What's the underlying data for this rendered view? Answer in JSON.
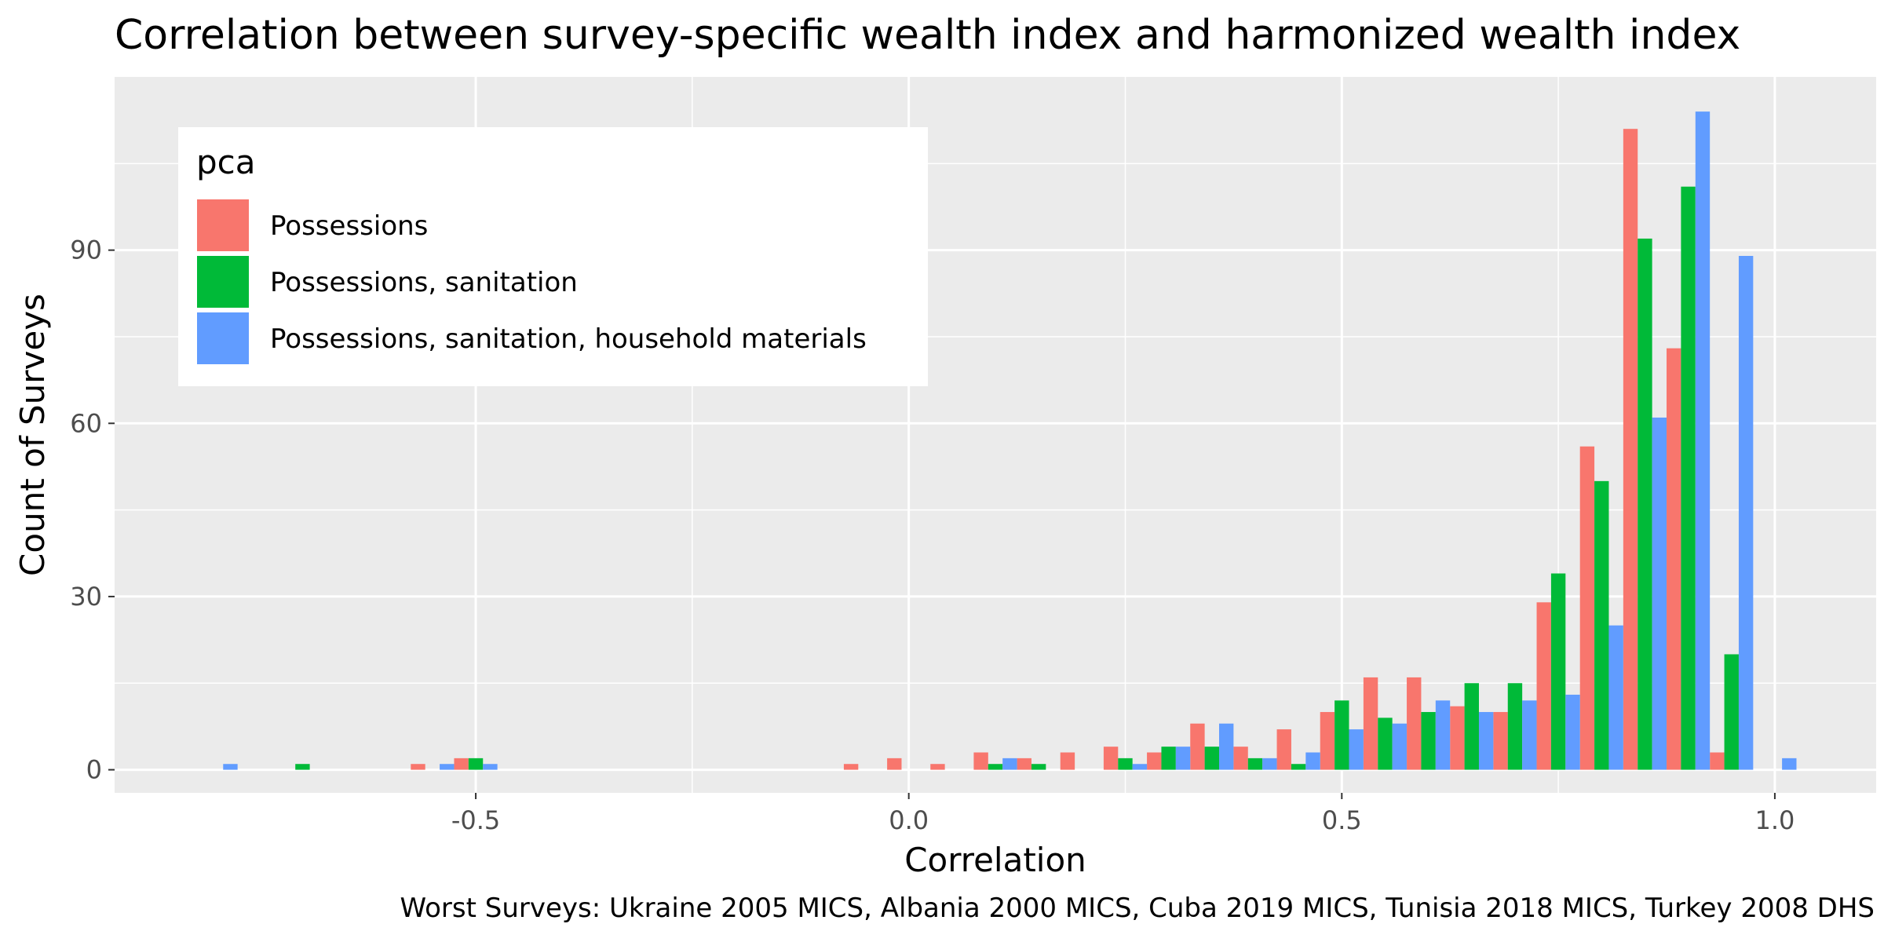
{
  "chart_data": {
    "type": "bar",
    "title": "Correlation between survey-specific wealth index and harmonized wealth index",
    "xlabel": "Correlation",
    "ylabel": "Count of Surveys",
    "caption": "Worst Surveys: Ukraine 2005 MICS, Albania 2000 MICS, Cuba 2019 MICS, Tunisia 2018 MICS, Turkey 2008 DHS",
    "xlim": [
      -0.917,
      1.117
    ],
    "ylim": [
      -4,
      120
    ],
    "x_ticks": [
      -0.5,
      0.0,
      0.5,
      1.0
    ],
    "x_tick_labels": [
      "-0.5",
      "0.0",
      "0.5",
      "1.0"
    ],
    "y_ticks": [
      0,
      30,
      60,
      90
    ],
    "y_tick_labels": [
      "0",
      "30",
      "60",
      "90"
    ],
    "bin_width": 0.05,
    "bins": [
      -0.8,
      -0.75,
      -0.7,
      -0.65,
      -0.6,
      -0.55,
      -0.5,
      -0.45,
      -0.4,
      -0.35,
      -0.3,
      -0.25,
      -0.2,
      -0.15,
      -0.1,
      -0.05,
      0.0,
      0.05,
      0.1,
      0.15,
      0.2,
      0.25,
      0.3,
      0.35,
      0.4,
      0.45,
      0.5,
      0.55,
      0.6,
      0.65,
      0.7,
      0.75,
      0.8,
      0.85,
      0.9,
      0.95,
      1.0
    ],
    "grid": true,
    "background": "#ebebeb",
    "legend": {
      "title": "pca",
      "placement": "top-left"
    },
    "series": [
      {
        "name": "Possessions",
        "color": "#F8766D",
        "values": [
          0,
          0,
          0,
          0,
          0,
          1,
          2,
          0,
          0,
          0,
          0,
          0,
          0,
          0,
          0,
          1,
          2,
          1,
          3,
          2,
          3,
          4,
          3,
          8,
          4,
          7,
          10,
          16,
          16,
          11,
          10,
          29,
          56,
          111,
          73,
          3,
          0
        ]
      },
      {
        "name": "Possessions, sanitation",
        "color": "#00BA38",
        "values": [
          0,
          0,
          1,
          0,
          0,
          0,
          2,
          0,
          0,
          0,
          0,
          0,
          0,
          0,
          0,
          0,
          0,
          0,
          1,
          1,
          0,
          2,
          4,
          4,
          2,
          1,
          12,
          9,
          10,
          15,
          15,
          34,
          50,
          92,
          101,
          20,
          0
        ]
      },
      {
        "name": "Possessions, sanitation, household materials",
        "color": "#619CFF",
        "values": [
          1,
          0,
          0,
          0,
          0,
          1,
          1,
          0,
          0,
          0,
          0,
          0,
          0,
          0,
          0,
          0,
          0,
          0,
          2,
          0,
          0,
          1,
          4,
          8,
          2,
          3,
          7,
          8,
          12,
          10,
          12,
          13,
          25,
          61,
          114,
          89,
          2
        ]
      }
    ]
  }
}
